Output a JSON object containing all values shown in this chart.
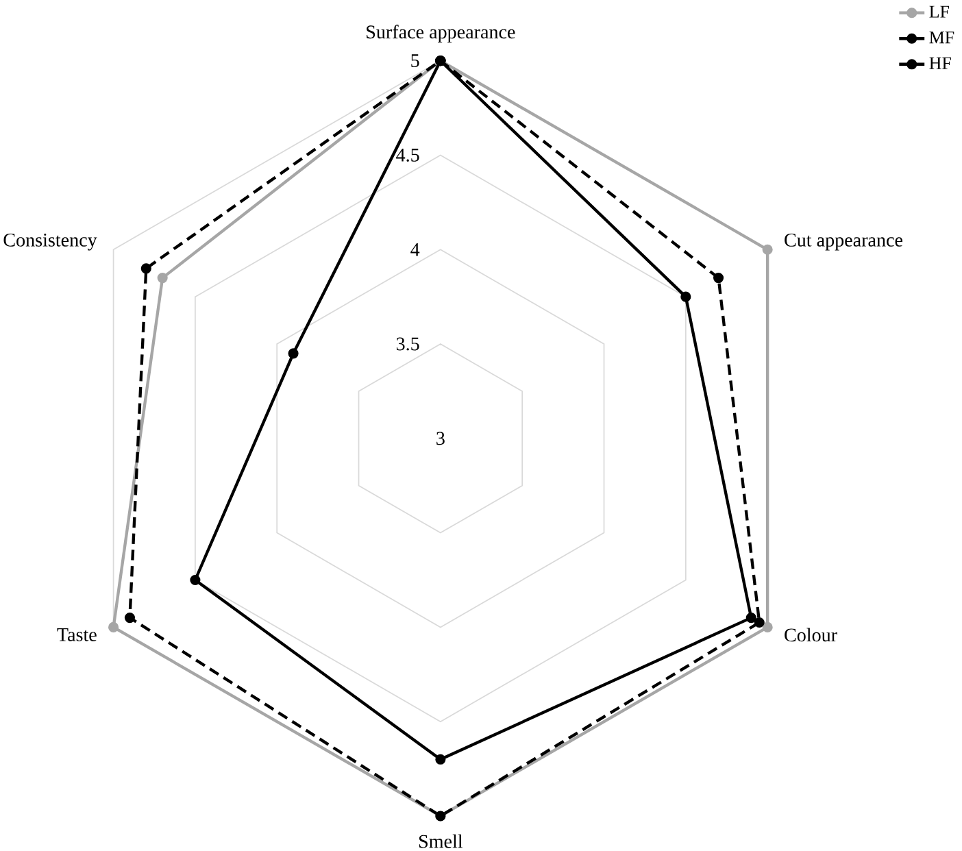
{
  "chart_data": {
    "type": "radar",
    "categories": [
      "Surface appearance",
      "Cut appearance",
      "Colour",
      "Smell",
      "Taste",
      "Consistency"
    ],
    "series": [
      {
        "name": "LF",
        "color": "#a6a6a6",
        "values": [
          5,
          5,
          5,
          5,
          5,
          4.7
        ]
      },
      {
        "name": "MF",
        "color": "#000000",
        "line_style": "dashed",
        "values": [
          5,
          4.7,
          4.95,
          5,
          4.9,
          4.8
        ]
      },
      {
        "name": "HF",
        "color": "#000000",
        "values": [
          5,
          4.5,
          4.9,
          4.7,
          4.5,
          3.9
        ]
      }
    ],
    "ylim": [
      3,
      5
    ],
    "yticks": [
      3,
      3.5,
      4,
      4.5,
      5
    ],
    "grid": true,
    "legend": "top right",
    "marker": "circle",
    "line_style": "solid"
  }
}
